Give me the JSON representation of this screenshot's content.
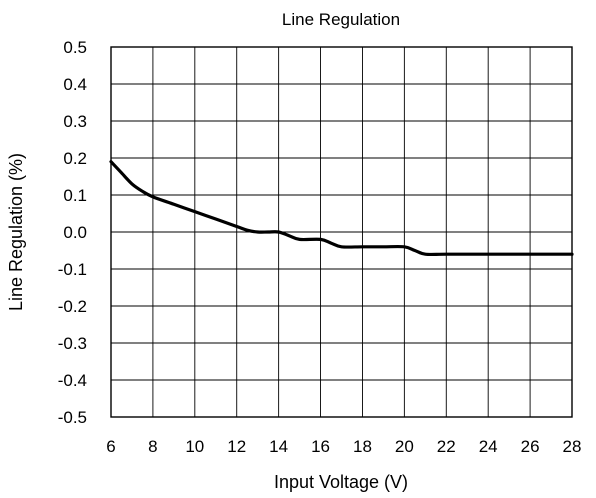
{
  "chart_data": {
    "type": "line",
    "title": "Line Regulation",
    "xlabel": "Input Voltage (V)",
    "ylabel": "Line Regulation (%)",
    "xlim": [
      6,
      28
    ],
    "ylim": [
      -0.5,
      0.5
    ],
    "x_ticks": [
      6,
      8,
      10,
      12,
      14,
      16,
      18,
      20,
      22,
      24,
      26,
      28
    ],
    "y_ticks": [
      0.5,
      0.4,
      0.3,
      0.2,
      0.1,
      0.0,
      -0.1,
      -0.2,
      -0.3,
      -0.4,
      -0.5
    ],
    "x_tick_labels": [
      "6",
      "8",
      "10",
      "12",
      "14",
      "16",
      "18",
      "20",
      "22",
      "24",
      "26",
      "28"
    ],
    "y_tick_labels": [
      "0.5",
      "0.4",
      "0.3",
      "0.2",
      "0.1",
      "0.0",
      "-0.1",
      "-0.2",
      "-0.3",
      "-0.4",
      "-0.5"
    ],
    "grid": true,
    "legend": "none",
    "series": [
      {
        "color": "#000000",
        "x": [
          6,
          6.5,
          7,
          7.5,
          8,
          9,
          10,
          11,
          12,
          12.5,
          13,
          13.5,
          14,
          14.5,
          15,
          16,
          16.5,
          17,
          18,
          19,
          20,
          20.5,
          21,
          22,
          24,
          26,
          28
        ],
        "y": [
          0.19,
          0.16,
          0.13,
          0.11,
          0.095,
          0.075,
          0.055,
          0.035,
          0.015,
          0.005,
          0.0,
          0.0,
          0.0,
          -0.01,
          -0.02,
          -0.02,
          -0.03,
          -0.04,
          -0.04,
          -0.04,
          -0.04,
          -0.05,
          -0.06,
          -0.06,
          -0.06,
          -0.06,
          -0.06
        ]
      }
    ]
  }
}
